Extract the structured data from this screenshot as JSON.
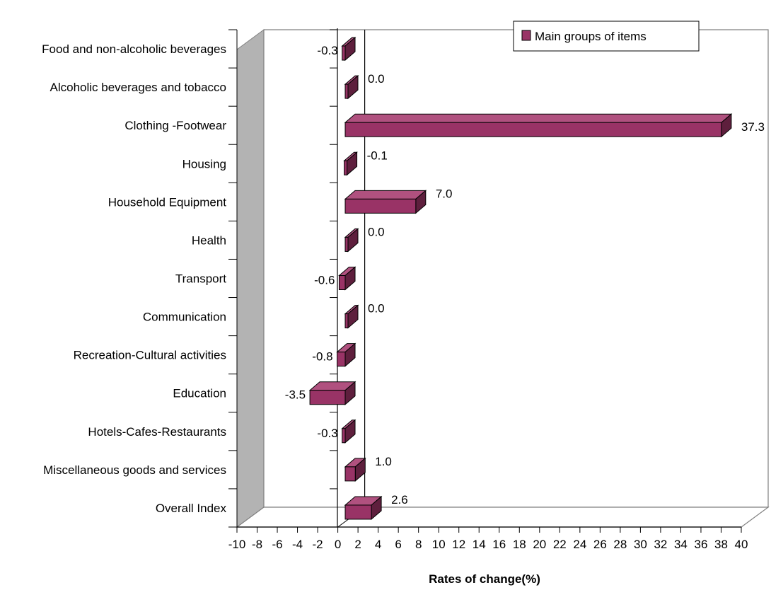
{
  "chart_data": {
    "type": "bar",
    "orientation": "horizontal",
    "three_d": true,
    "categories": [
      "Food and non-alcoholic beverages",
      "Alcoholic beverages and tobacco",
      "Clothing -Footwear",
      "Housing",
      "Household Equipment",
      "Health",
      "Transport",
      "Communication",
      "Recreation-Cultural activities",
      "Education",
      "Hotels-Cafes-Restaurants",
      "Miscellaneous goods and services",
      "Overall Index"
    ],
    "series": [
      {
        "name": "Main groups of items",
        "color": "#993366",
        "values": [
          -0.3,
          0.0,
          37.3,
          -0.1,
          7.0,
          0.0,
          -0.6,
          0.0,
          -0.8,
          -3.5,
          -0.3,
          1.0,
          2.6
        ],
        "labels": [
          "-0.3",
          "0.0",
          "37.3",
          "-0.1",
          "7.0",
          "0.0",
          "-0.6",
          "0.0",
          "-0.8",
          "-3.5",
          "-0.3",
          "1.0",
          "2.6"
        ]
      }
    ],
    "xlabel": "Rates of change(%)",
    "ylabel": "",
    "xlim": [
      -10,
      40
    ],
    "xticks": [
      -10,
      -8,
      -6,
      -4,
      -2,
      0,
      2,
      4,
      6,
      8,
      10,
      12,
      14,
      16,
      18,
      20,
      22,
      24,
      26,
      28,
      30,
      32,
      34,
      36,
      38,
      40
    ],
    "xtick_labels": [
      "-10",
      "-8",
      "-6",
      "-4",
      "-2",
      "0",
      "2",
      "4",
      "6",
      "8",
      "10",
      "12",
      "14",
      "16",
      "18",
      "20",
      "22",
      "24",
      "26",
      "28",
      "30",
      "32",
      "34",
      "36",
      "38",
      "40"
    ],
    "grid": false,
    "legend": {
      "position": "top-right",
      "label": "Main groups of items"
    },
    "colors": {
      "bar_front": "#993366",
      "bar_top": "#b0517f",
      "bar_side": "#5e1f3d",
      "side_wall": "#b3b3b3",
      "axis": "#000000",
      "frame": "#808080"
    }
  }
}
